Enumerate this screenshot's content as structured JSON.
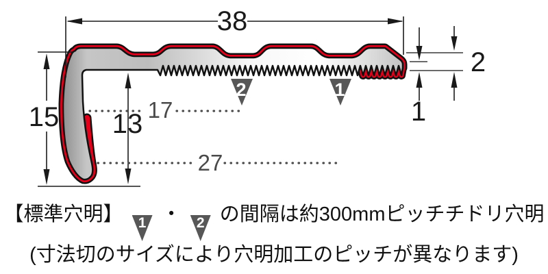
{
  "diagram": {
    "dim_width_top": "38",
    "dim_height_left": "15",
    "dim_leg_inner_height": "13",
    "dim_hole_row2_offset": "17",
    "dim_hole_row1_offset": "27",
    "dim_tip_thickness": "2",
    "dim_tooth_height": "1",
    "marker_1": "1",
    "marker_2": "2"
  },
  "footer": {
    "heading": "【標準穴明】",
    "marker_1": "1",
    "separator": "・",
    "marker_2": "2",
    "line1_text": "の間隔は約300mmピッチチドリ穴明",
    "line2_text": "(寸法切のサイズにより穴明加工のピッチが異なります)"
  },
  "colors": {
    "accent_red": "#e3001b",
    "marker_gray": "#575757",
    "dim_gray_label": "#4a4a4a",
    "line_black": "#1a1a1a",
    "body_gray_dark": "#a0a0a0",
    "body_gray_light": "#f7f7f7"
  }
}
